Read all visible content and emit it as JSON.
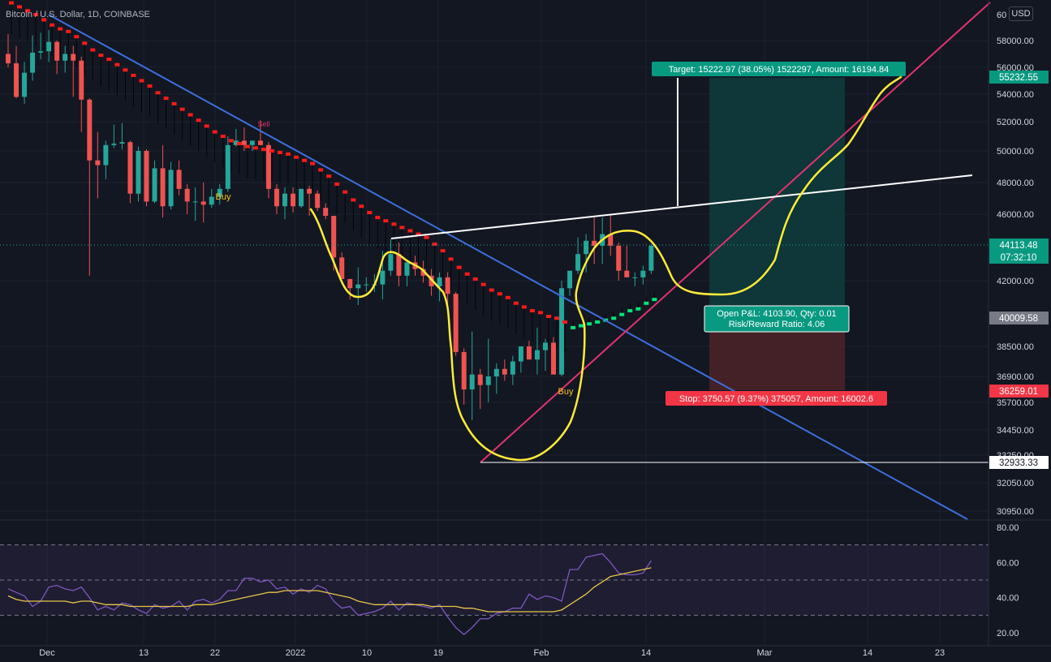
{
  "symbol_title": "Bitcoin / U.S. Dollar, 1D, COINBASE",
  "currency_label": "USD",
  "colors": {
    "background": "#131722",
    "grid": "#1e222d",
    "up": "#26a69a",
    "down": "#ef5350",
    "trend_blue": "#3c6fdc",
    "trend_pink": "#e0336e",
    "drawing_yellow": "#ffeb3b",
    "rsi": "#7e57c2",
    "rsi_ma": "#e8c547",
    "target_fill": "#0f3c3c",
    "stop_fill": "#4a2228"
  },
  "chart_data": {
    "type": "candlestick",
    "title": "Bitcoin / U.S. Dollar, 1D, COINBASE",
    "y_ticks": [
      "58000.00",
      "56000.00",
      "54000.00",
      "52000.00",
      "50000.00",
      "48000.00",
      "46000.00",
      "42000.00",
      "38500.00",
      "36900.00",
      "35700.00",
      "34450.00",
      "33250.00",
      "32050.00",
      "30950.00"
    ],
    "x_ticks": [
      "Dec",
      "13",
      "22",
      "2022",
      "10",
      "19",
      "Feb",
      "14",
      "Mar",
      "14",
      "23"
    ],
    "rsi_ticks": [
      "80.00",
      "60.00",
      "40.00",
      "20.00"
    ],
    "price_labels": [
      {
        "text": "55232.55",
        "kind": "target"
      },
      {
        "text": "44113.48",
        "kind": "current"
      },
      {
        "text": "07:32:10",
        "kind": "countdown"
      },
      {
        "text": "40009.58",
        "kind": "entry"
      },
      {
        "text": "36259.01",
        "kind": "stop"
      },
      {
        "text": "32933.33",
        "kind": "line"
      }
    ],
    "annotations": {
      "target": "Target: 15222.97 (38.05%) 1522297, Amount: 16194.84",
      "pnl_line1": "Open P&L: 4103.90, Qty: 0.01",
      "pnl_line2": "Risk/Reward Ratio: 4.06",
      "stop": "Stop: 3750.57 (9.37%) 375057, Amount: 16002.6",
      "buy_1": "Buy",
      "buy_2": "Buy",
      "sell": "Sell"
    },
    "candles": [
      [
        57000,
        58500,
        56000,
        56300
      ],
      [
        56300,
        57600,
        53700,
        53800
      ],
      [
        53800,
        56400,
        53300,
        55600
      ],
      [
        55600,
        58400,
        55000,
        57100
      ],
      [
        57100,
        58600,
        56600,
        57200
      ],
      [
        57200,
        58800,
        56400,
        57900
      ],
      [
        57900,
        58000,
        55500,
        56500
      ],
      [
        56500,
        57600,
        55600,
        57000
      ],
      [
        57000,
        57600,
        53800,
        56500
      ],
      [
        56500,
        56800,
        51300,
        53600
      ],
      [
        53600,
        53700,
        42300,
        49400
      ],
      [
        49400,
        51300,
        47000,
        49100
      ],
      [
        49100,
        50700,
        48200,
        50400
      ],
      [
        50400,
        51800,
        50200,
        50500
      ],
      [
        50500,
        51900,
        50100,
        50600
      ],
      [
        50600,
        50700,
        46700,
        47300
      ],
      [
        47300,
        50300,
        46800,
        50000
      ],
      [
        50000,
        50100,
        46500,
        46800
      ],
      [
        46800,
        49400,
        46700,
        48900
      ],
      [
        48900,
        50400,
        45800,
        46500
      ],
      [
        46500,
        49300,
        46300,
        48800
      ],
      [
        48800,
        49400,
        47200,
        47600
      ],
      [
        47600,
        47900,
        46000,
        46800
      ],
      [
        46800,
        47700,
        45600,
        46800
      ],
      [
        46800,
        48000,
        45500,
        46600
      ],
      [
        46600,
        47600,
        46400,
        47100
      ],
      [
        47100,
        47900,
        46600,
        47600
      ],
      [
        47600,
        51000,
        47400,
        50400
      ],
      [
        50400,
        51500,
        50300,
        50700
      ],
      [
        50700,
        51600,
        50000,
        50400
      ],
      [
        50400,
        50700,
        50000,
        50700
      ],
      [
        50700,
        52100,
        50400,
        50400
      ],
      [
        50400,
        50600,
        47000,
        47600
      ],
      [
        47600,
        47900,
        46000,
        46500
      ],
      [
        46500,
        47700,
        45700,
        47300
      ],
      [
        47300,
        47700,
        46100,
        46500
      ],
      [
        46500,
        47600,
        46400,
        47600
      ],
      [
        47600,
        47800,
        45900,
        47300
      ],
      [
        47300,
        47500,
        46200,
        46400
      ],
      [
        46400,
        46700,
        45700,
        45900
      ],
      [
        45900,
        45900,
        42600,
        43400
      ],
      [
        43400,
        43700,
        42100,
        42100
      ],
      [
        42100,
        42100,
        41000,
        41600
      ],
      [
        41600,
        42800,
        40700,
        41800
      ],
      [
        41800,
        42200,
        41400,
        41800
      ],
      [
        41800,
        42400,
        41400,
        41800
      ],
      [
        41800,
        43800,
        41000,
        42600
      ],
      [
        42600,
        44500,
        42300,
        43600
      ],
      [
        43600,
        44300,
        41700,
        42300
      ],
      [
        42300,
        43000,
        41700,
        43100
      ],
      [
        43100,
        43500,
        42300,
        42700
      ],
      [
        42700,
        43200,
        41900,
        42300
      ],
      [
        42300,
        42700,
        41200,
        41700
      ],
      [
        41700,
        42500,
        40900,
        42200
      ],
      [
        42200,
        42500,
        40500,
        41300
      ],
      [
        41300,
        41400,
        38000,
        38200
      ],
      [
        38200,
        38400,
        35600,
        36300
      ],
      [
        36300,
        39300,
        34900,
        37000
      ],
      [
        37000,
        37300,
        35400,
        36500
      ],
      [
        36500,
        38900,
        35700,
        36900
      ],
      [
        36900,
        37600,
        36100,
        37300
      ],
      [
        37300,
        37800,
        36700,
        37000
      ],
      [
        37000,
        38000,
        36500,
        37700
      ],
      [
        37700,
        38400,
        37100,
        38500
      ],
      [
        38500,
        38800,
        37900,
        37800
      ],
      [
        37800,
        39500,
        37000,
        38300
      ],
      [
        38300,
        38900,
        37200,
        38700
      ],
      [
        38700,
        39000,
        37200,
        37000
      ],
      [
        37000,
        42000,
        36900,
        41600
      ],
      [
        41600,
        42400,
        41200,
        42600
      ],
      [
        42600,
        44600,
        42400,
        43600
      ],
      [
        43600,
        44800,
        42500,
        44400
      ],
      [
        44400,
        45800,
        43000,
        44100
      ],
      [
        44100,
        45800,
        43000,
        44800
      ],
      [
        44800,
        46000,
        43500,
        44100
      ],
      [
        44100,
        44300,
        42000,
        42600
      ],
      [
        42600,
        44100,
        42400,
        42200
      ],
      [
        42200,
        42500,
        41700,
        42200
      ],
      [
        42200,
        42900,
        41800,
        42600
      ],
      [
        42600,
        44200,
        42400,
        44100
      ]
    ],
    "rsi": [
      45,
      43,
      41,
      35,
      38,
      46,
      47,
      45,
      44,
      46,
      40,
      33,
      35,
      33,
      37,
      36,
      33,
      31,
      36,
      34,
      35,
      38,
      33,
      38,
      39,
      37,
      39,
      44,
      44,
      51,
      51,
      49,
      50,
      45,
      46,
      42,
      45,
      43,
      47,
      45,
      38,
      34,
      35,
      30,
      31,
      32,
      34,
      38,
      33,
      37,
      36,
      35,
      34,
      36,
      29,
      23,
      19,
      23,
      28,
      28,
      31,
      32,
      34,
      34,
      42,
      39,
      41,
      40,
      38,
      56,
      56,
      63,
      64,
      65,
      60,
      54,
      53,
      53,
      54,
      61
    ],
    "rsi_ma": [
      41,
      39,
      38,
      38,
      38,
      38,
      38,
      38,
      37,
      38,
      38,
      37,
      36,
      36,
      36,
      35,
      35,
      35,
      35,
      35,
      35,
      35,
      35,
      36,
      36,
      36,
      37,
      38,
      39,
      40,
      41,
      42,
      43,
      43,
      44,
      44,
      44,
      44,
      44,
      43,
      42,
      41,
      40,
      38,
      37,
      36,
      36,
      36,
      36,
      36,
      36,
      36,
      35,
      35,
      35,
      35,
      34,
      34,
      33,
      32,
      32,
      32,
      32,
      32,
      32,
      32,
      32,
      32,
      33,
      36,
      39,
      42,
      46,
      49,
      52,
      53,
      54,
      55,
      56,
      57
    ],
    "sar": [
      60900,
      60600,
      60300,
      60000,
      59600,
      59200,
      58900,
      58700,
      58300,
      57800,
      57300,
      56900,
      56600,
      56200,
      55800,
      55400,
      55000,
      54600,
      54100,
      53700,
      53300,
      52900,
      52500,
      52100,
      51700,
      51300,
      51000,
      50700,
      50500,
      50300,
      50200,
      50100,
      50000,
      49900,
      49800,
      49600,
      49400,
      49200,
      48800,
      48400,
      47900,
      47400,
      46900,
      46500,
      46100,
      45800,
      45600,
      45400,
      45200,
      45000,
      44800,
      44600,
      44200,
      43800,
      43300,
      42800,
      42400,
      42100,
      41800,
      41500,
      41300,
      41100,
      40800,
      40600,
      40400,
      40300,
      40100,
      40000,
      39800,
      39500,
      39600,
      39700,
      39800,
      39900,
      40000,
      40200,
      40400,
      40500,
      40800,
      41000
    ]
  }
}
